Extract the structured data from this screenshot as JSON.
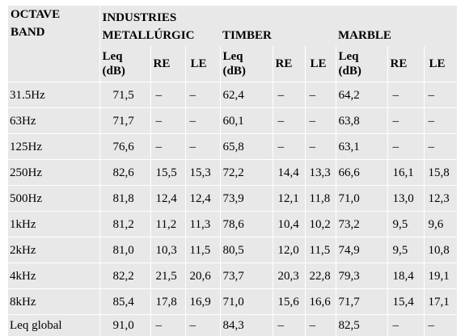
{
  "table": {
    "header": {
      "octave_band": "OCTAVE BAND",
      "industries": "INDUSTRIES",
      "groups": [
        "METALLÚRGIC",
        "TIMBER",
        "MARBLE"
      ],
      "columns": [
        "Leq (dB)",
        "RE",
        "LE"
      ]
    },
    "rows": [
      {
        "band": "31.5Hz",
        "values": [
          "71,5",
          "–",
          "–",
          "62,4",
          "–",
          "–",
          "64,2",
          "–",
          "–"
        ]
      },
      {
        "band": "63Hz",
        "values": [
          "71,7",
          "–",
          "–",
          "60,1",
          "–",
          "–",
          "63,8",
          "–",
          "–"
        ]
      },
      {
        "band": "125Hz",
        "values": [
          "76,6",
          "–",
          "–",
          "65,8",
          "–",
          "–",
          "63,1",
          "–",
          "–"
        ]
      },
      {
        "band": "250Hz",
        "values": [
          "82,6",
          "15,5",
          "15,3",
          "72,2",
          "14,4",
          "13,3",
          "66,6",
          "16,1",
          "15,8"
        ]
      },
      {
        "band": "500Hz",
        "values": [
          "81,8",
          "12,4",
          "12,4",
          "73,9",
          "12,1",
          "11,8",
          "71,0",
          "13,0",
          "12,3"
        ]
      },
      {
        "band": "1kHz",
        "values": [
          "81,2",
          "11,2",
          "11,3",
          "78,6",
          "10,4",
          "10,2",
          "73,2",
          "9,5",
          "9,6"
        ]
      },
      {
        "band": "2kHz",
        "values": [
          "81,0",
          "10,3",
          "11,5",
          "80,5",
          "12,0",
          "11,5",
          "74,9",
          "9,5",
          "10,8"
        ]
      },
      {
        "band": "4kHz",
        "values": [
          "82,2",
          "21,5",
          "20,6",
          "73,7",
          "20,3",
          "22,8",
          "79,3",
          "18,4",
          "19,1"
        ]
      },
      {
        "band": "8kHz",
        "values": [
          "85,4",
          "17,8",
          "16,9",
          "71,0",
          "15,6",
          "16,6",
          "71,7",
          "15,4",
          "17,1"
        ]
      },
      {
        "band": "Leq global",
        "values": [
          "91,0",
          "–",
          "–",
          "84,3",
          "–",
          "–",
          "82,5",
          "–",
          "–"
        ]
      }
    ]
  }
}
